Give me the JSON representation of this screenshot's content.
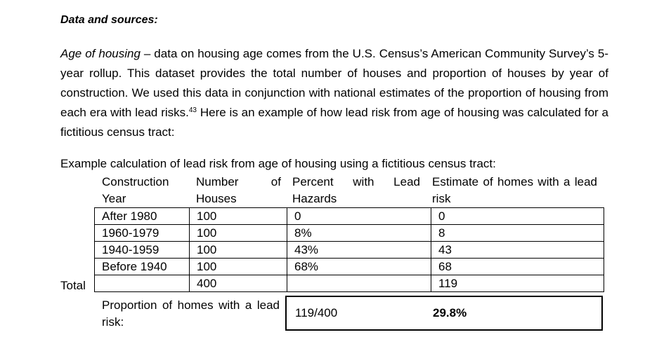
{
  "heading": "Data and sources:",
  "paragraph": {
    "term": "Age of housing",
    "text": " – data on housing age comes from the U.S. Census’s American Community Survey’s 5-year rollup. This dataset provides the total number of houses and proportion of houses by year of construction.  We used this data in conjunction with national estimates of the proportion of housing from each era with lead risks.",
    "footnote": "43",
    "text_after": "  Here is an example of how lead risk from age of housing was calculated for a fictitious census tract:"
  },
  "caption": "Example calculation of lead risk from age of housing using a fictitious census tract:",
  "table": {
    "headers": [
      "Construction Year",
      "Number of Houses",
      "Percent with Lead Hazards",
      "Estimate of homes with a lead risk"
    ],
    "rows": [
      [
        "After 1980",
        "100",
        "0",
        "0"
      ],
      [
        "1960-1979",
        "100",
        "8%",
        "8"
      ],
      [
        "1940-1959",
        "100",
        "43%",
        "43"
      ],
      [
        "Before 1940",
        "100",
        "68%",
        "68"
      ]
    ],
    "total_label": "Total",
    "total_row": [
      "",
      "400",
      "",
      "119"
    ]
  },
  "proportion": {
    "label": "Proportion of homes with a lead risk:",
    "fraction": "119/400",
    "percent": "29.8%"
  }
}
